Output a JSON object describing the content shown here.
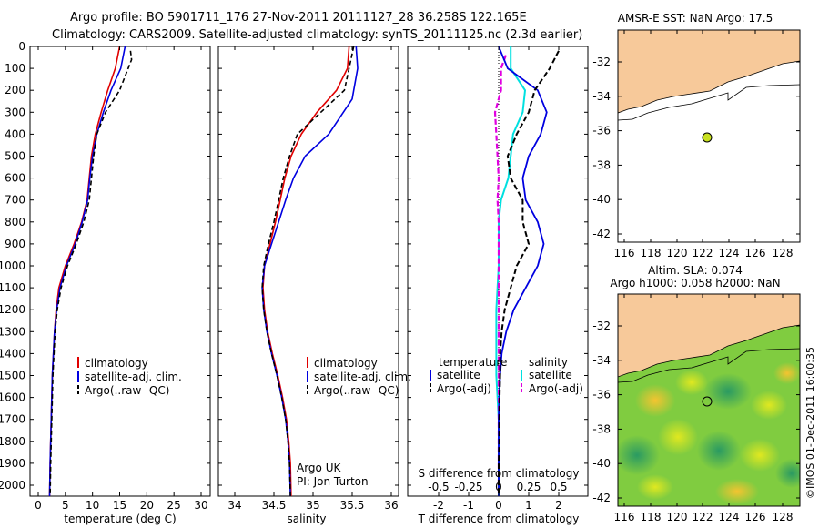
{
  "titles": {
    "line1": "Argo profile: BO 5901711_176 27-Nov-2011 20111127_28 36.258S 122.165E",
    "line2": "Climatology: CARS2009. Satellite-adjusted climatology: synTS_20111125.nc (2.3d earlier)"
  },
  "depth_ticks": [
    "0",
    "100",
    "200",
    "300",
    "400",
    "500",
    "600",
    "700",
    "800",
    "900",
    "1000",
    "1100",
    "1200",
    "1300",
    "1400",
    "1500",
    "1600",
    "1700",
    "1800",
    "1900",
    "2000"
  ],
  "colors": {
    "climatology": "#e00000",
    "satellite": "#0000e0",
    "argo": "#000000",
    "sal_satellite": "#00e0e0",
    "sal_argo": "#e000e0",
    "land": "#f7c99a"
  },
  "panel1": {
    "xlabel": "temperature (deg C)",
    "xticks": [
      "0",
      "5",
      "10",
      "15",
      "20",
      "25",
      "30"
    ],
    "legend": [
      "climatology",
      "satellite-adj. clim.",
      "Argo(..raw -QC)"
    ]
  },
  "panel2": {
    "xlabel": "salinity",
    "xticks": [
      "34",
      "34.5",
      "35",
      "35.5",
      "36"
    ],
    "legend": [
      "climatology",
      "satellite-adj. clim.",
      "Argo(..raw -QC)"
    ],
    "note1": "Argo UK",
    "note2": "PI: Jon Turton"
  },
  "panel3": {
    "xlabel_top": "S difference from climatology",
    "xlabel_bottom": "T difference from climatology",
    "s_ticks": [
      "-0.5",
      "-0.25",
      "0",
      "0.25",
      "0.5"
    ],
    "t_ticks": [
      "-2",
      "-1",
      "0",
      "1",
      "2"
    ],
    "legend_t_head": "temperature",
    "legend_s_head": "salinity",
    "legend_t": [
      "satellite",
      "Argo(-adj)"
    ],
    "legend_s": [
      "satellite",
      "Argo(-adj)"
    ]
  },
  "map1": {
    "title": "AMSR-E SST: NaN Argo: 17.5",
    "lat_ticks": [
      "-32",
      "-34",
      "-36",
      "-38",
      "-40",
      "-42"
    ],
    "lon_ticks": [
      "116",
      "118",
      "120",
      "122",
      "124",
      "126",
      "128"
    ]
  },
  "map2": {
    "title1": "Altim. SLA: 0.074",
    "title2": "Argo h1000: 0.058 h2000: NaN",
    "lat_ticks": [
      "-32",
      "-34",
      "-36",
      "-38",
      "-40",
      "-42"
    ],
    "lon_ticks": [
      "116",
      "118",
      "120",
      "122",
      "124",
      "126",
      "128"
    ]
  },
  "credit": "©IMOS 01-Dec-2011 16:00:35",
  "chart_data": [
    {
      "type": "line",
      "xlabel": "temperature (deg C)",
      "xlim": [
        -2,
        32
      ],
      "ylim": [
        2050,
        0
      ],
      "series": [
        {
          "name": "climatology",
          "x": [
            15.0,
            14.2,
            12.8,
            11.6,
            10.5,
            9.8,
            9.4,
            9.0,
            8.0,
            6.6,
            5.0,
            3.8,
            3.3,
            3.0,
            2.8,
            2.6,
            2.5,
            2.4,
            2.3,
            2.2,
            2.1
          ],
          "y": [
            0,
            100,
            200,
            300,
            400,
            500,
            600,
            700,
            800,
            900,
            1000,
            1100,
            1200,
            1300,
            1400,
            1500,
            1600,
            1700,
            1800,
            1900,
            2050
          ]
        },
        {
          "name": "satellite-adj. clim.",
          "x": [
            16.0,
            15.2,
            13.4,
            12.0,
            10.8,
            10.0,
            9.5,
            9.1,
            8.1,
            6.8,
            5.2,
            4.0,
            3.4,
            3.0,
            2.8,
            2.6,
            2.5,
            2.4,
            2.3,
            2.2,
            2.1
          ],
          "y": [
            0,
            100,
            200,
            300,
            400,
            500,
            600,
            700,
            800,
            900,
            1000,
            1100,
            1200,
            1300,
            1400,
            1500,
            1600,
            1700,
            1800,
            1900,
            2050
          ]
        },
        {
          "name": "Argo(..raw -QC)",
          "x": [
            17.0,
            17.2,
            15.0,
            12.4,
            10.8,
            10.2,
            9.8,
            9.4,
            8.4,
            7.0,
            5.4,
            4.2,
            3.5,
            3.1,
            2.9,
            2.7,
            2.6,
            2.5,
            2.4,
            2.3,
            2.2
          ],
          "y": [
            20,
            60,
            200,
            300,
            400,
            500,
            600,
            700,
            800,
            900,
            1000,
            1100,
            1200,
            1300,
            1400,
            1500,
            1600,
            1700,
            1800,
            1900,
            2050
          ]
        }
      ]
    },
    {
      "type": "line",
      "xlabel": "salinity",
      "xlim": [
        33.8,
        36.1
      ],
      "ylim": [
        2050,
        0
      ],
      "series": [
        {
          "name": "climatology",
          "x": [
            35.46,
            35.44,
            35.3,
            35.05,
            34.85,
            34.72,
            34.64,
            34.58,
            34.52,
            34.45,
            34.38,
            34.36,
            34.38,
            34.42,
            34.48,
            34.55,
            34.61,
            34.66,
            34.69,
            34.71,
            34.72
          ],
          "y": [
            0,
            100,
            200,
            300,
            400,
            500,
            600,
            700,
            800,
            900,
            1000,
            1100,
            1200,
            1300,
            1400,
            1500,
            1600,
            1700,
            1800,
            1900,
            2050
          ]
        },
        {
          "name": "satellite-adj. clim.",
          "x": [
            35.55,
            35.57,
            35.52,
            35.5,
            35.2,
            34.9,
            34.75,
            34.65,
            34.56,
            34.47,
            34.38,
            34.35,
            34.37,
            34.41,
            34.47,
            34.54,
            34.6,
            34.65,
            34.68,
            34.7,
            34.71
          ],
          "y": [
            0,
            100,
            200,
            240,
            400,
            500,
            600,
            700,
            800,
            900,
            1000,
            1100,
            1200,
            1300,
            1400,
            1500,
            1600,
            1700,
            1800,
            1900,
            2050
          ]
        },
        {
          "name": "Argo(..raw -QC)",
          "x": [
            35.52,
            35.46,
            35.4,
            35.1,
            34.8,
            34.7,
            34.62,
            34.56,
            34.5,
            34.43,
            34.37,
            34.35,
            34.37,
            34.41,
            34.47,
            34.54,
            34.6,
            34.65,
            34.68,
            34.7,
            34.71
          ],
          "y": [
            0,
            100,
            200,
            300,
            400,
            500,
            600,
            700,
            800,
            900,
            1000,
            1100,
            1200,
            1300,
            1400,
            1500,
            1600,
            1700,
            1800,
            1900,
            2050
          ]
        }
      ]
    },
    {
      "type": "line",
      "xlabel": "T difference from climatology",
      "xlim": [
        -2.5,
        2.5
      ],
      "ylim": [
        2050,
        0
      ],
      "series": [
        {
          "name": "temperature satellite",
          "x": [
            0,
            0.3,
            1.3,
            1.6,
            1.4,
            1.0,
            0.8,
            0.9,
            1.3,
            1.5,
            1.3,
            0.9,
            0.5,
            0.25,
            0.1,
            0.05,
            0.02,
            0.0,
            0.0,
            0.0,
            0.0
          ],
          "y": [
            0,
            100,
            200,
            300,
            400,
            500,
            600,
            700,
            800,
            900,
            1000,
            1100,
            1200,
            1300,
            1400,
            1500,
            1600,
            1700,
            1800,
            1900,
            2050
          ]
        },
        {
          "name": "temperature Argo(-adj)",
          "x": [
            2.0,
            1.7,
            1.2,
            1.0,
            0.6,
            0.3,
            0.4,
            0.8,
            0.8,
            1.0,
            0.6,
            0.4,
            0.2,
            0.1,
            0.05,
            0.05,
            0.03,
            0.02,
            0.02,
            0.0,
            0.0
          ],
          "y": [
            20,
            100,
            200,
            300,
            400,
            500,
            600,
            700,
            800,
            900,
            1000,
            1100,
            1200,
            1300,
            1400,
            1500,
            1600,
            1700,
            1800,
            1900,
            2050
          ]
        }
      ]
    },
    {
      "type": "line",
      "xlabel": "S difference from climatology",
      "xlim": [
        -0.65,
        0.65
      ],
      "ylim": [
        2050,
        0
      ],
      "series": [
        {
          "name": "salinity satellite",
          "x": [
            0.1,
            0.1,
            0.22,
            0.2,
            0.12,
            0.1,
            0.08,
            0.02,
            0.0,
            0.0,
            0.0,
            -0.01,
            -0.02,
            -0.02,
            -0.02,
            -0.02,
            -0.01,
            0.0,
            0.0,
            0.0,
            0.0
          ],
          "y": [
            0,
            100,
            200,
            300,
            400,
            500,
            600,
            700,
            800,
            900,
            1000,
            1100,
            1200,
            1300,
            1400,
            1500,
            1600,
            1700,
            1800,
            1900,
            2050
          ]
        },
        {
          "name": "salinity Argo(-adj)",
          "x": [
            0.06,
            0.02,
            0.02,
            -0.03,
            -0.02,
            -0.01,
            0.0,
            -0.01,
            0.0,
            0.0,
            0.0,
            0.0,
            0.0,
            0.0,
            0.0,
            0.0,
            0.0,
            0.0,
            0.0,
            0.0,
            0.0
          ],
          "y": [
            40,
            100,
            200,
            300,
            400,
            500,
            600,
            700,
            800,
            900,
            1000,
            1100,
            1200,
            1300,
            1400,
            1500,
            1600,
            1700,
            1800,
            1900,
            2050
          ]
        }
      ]
    }
  ]
}
